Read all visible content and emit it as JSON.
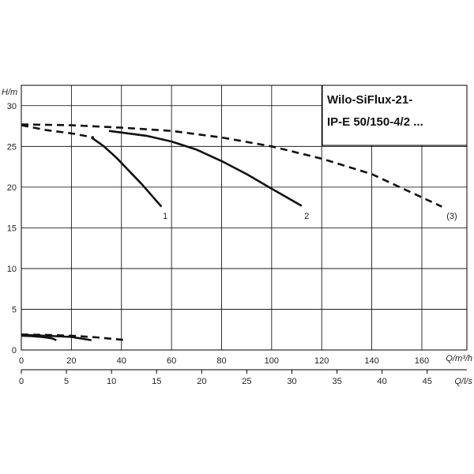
{
  "chart_data": {
    "type": "line",
    "title_lines": [
      "Wilo-SiFlux-21-",
      "IP-E 50/150-4/2 ..."
    ],
    "ylabel": "H/m",
    "xlabel": "Q/m³/h",
    "x2label": "Q/l/s",
    "ylim": [
      0,
      32.5
    ],
    "xlim": [
      0,
      178
    ],
    "x2lim": [
      0,
      49.4
    ],
    "yticks": [
      0,
      5,
      10,
      15,
      20,
      25,
      30
    ],
    "xticks": [
      0,
      20,
      40,
      60,
      80,
      100,
      120,
      140,
      160
    ],
    "x2ticks": [
      0,
      5,
      10,
      15,
      20,
      25,
      30,
      35,
      40,
      45
    ],
    "grid": true,
    "series": [
      {
        "name": "1",
        "style": "solid",
        "x": [
          28,
          33,
          38,
          43,
          48,
          52,
          56
        ],
        "y": [
          26.1,
          25.0,
          23.6,
          22.0,
          20.4,
          19.0,
          17.6
        ]
      },
      {
        "name": "2",
        "style": "solid",
        "x": [
          35,
          50,
          60,
          70,
          80,
          90,
          100,
          112
        ],
        "y": [
          26.9,
          26.3,
          25.6,
          24.6,
          23.2,
          21.6,
          19.8,
          17.7
        ]
      },
      {
        "name": "(3)",
        "style": "dashed",
        "x": [
          0,
          20,
          40,
          60,
          80,
          100,
          120,
          140,
          168
        ],
        "y": [
          27.7,
          27.6,
          27.3,
          26.9,
          26.1,
          25.0,
          23.5,
          21.6,
          17.6
        ]
      },
      {
        "name": "1",
        "style": "dashed",
        "x": [
          0,
          10,
          20,
          29
        ],
        "y": [
          27.6,
          27.0,
          26.6,
          26.1
        ]
      },
      {
        "name": "",
        "style": "solid",
        "x": [
          0,
          4,
          8,
          12,
          14
        ],
        "y": [
          1.75,
          1.7,
          1.6,
          1.45,
          1.2
        ]
      },
      {
        "name": "",
        "style": "solid",
        "x": [
          0,
          10,
          20,
          28
        ],
        "y": [
          1.85,
          1.75,
          1.6,
          1.2
        ]
      },
      {
        "name": "",
        "style": "dashed",
        "x": [
          0,
          10,
          20,
          30,
          42
        ],
        "y": [
          1.9,
          1.85,
          1.75,
          1.55,
          1.2
        ]
      }
    ],
    "labels": [
      {
        "text": "1",
        "x": 57.5,
        "y": 16.5
      },
      {
        "text": "2",
        "x": 114.0,
        "y": 16.5
      },
      {
        "text": "(3)",
        "x": 172.0,
        "y": 16.5
      }
    ],
    "colors": {
      "line": "#111111",
      "grid": "#000000"
    }
  }
}
